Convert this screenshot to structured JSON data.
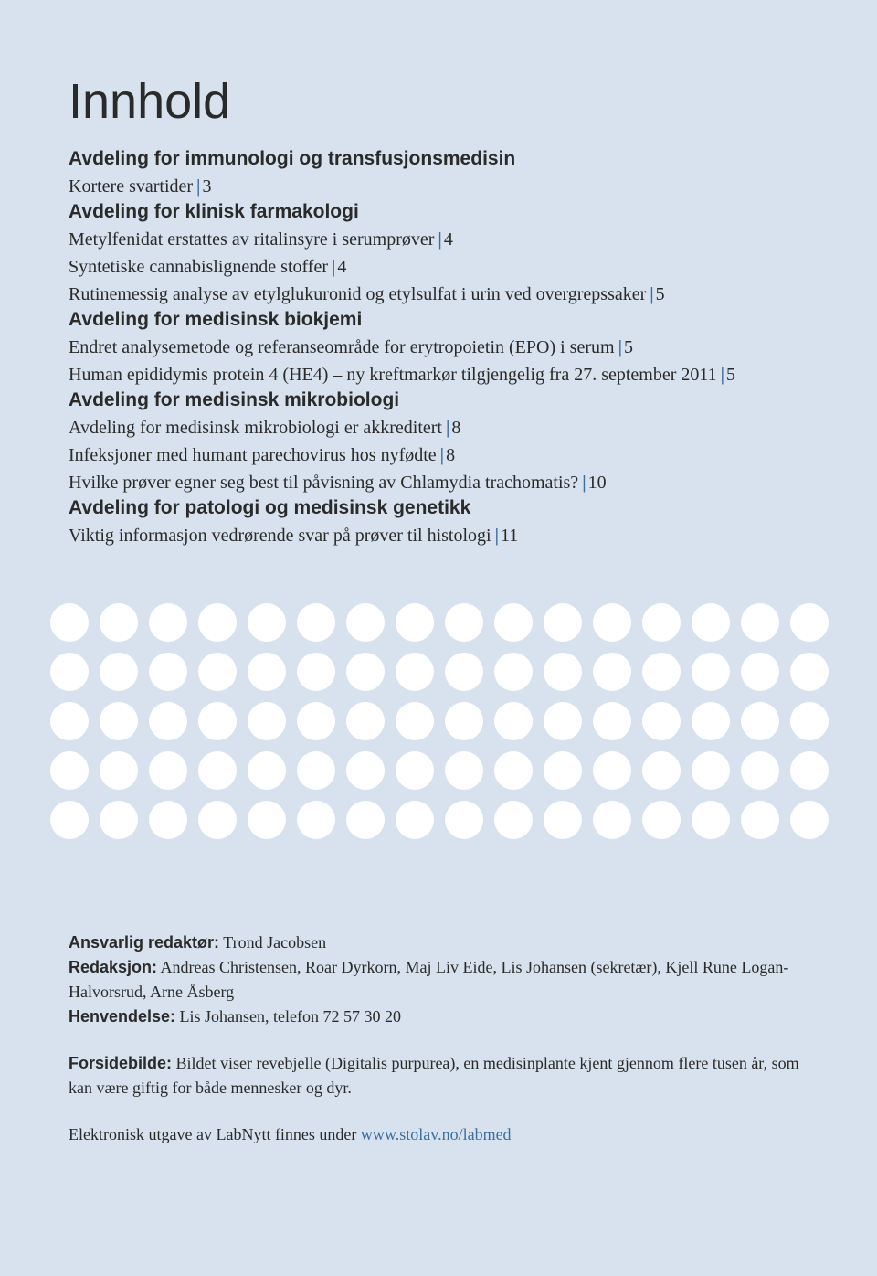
{
  "colors": {
    "background": "#d7e2ee",
    "text": "#2a2a2a",
    "accent": "#3d6ea0",
    "dot": "#ffffff"
  },
  "typography": {
    "title_fontsize": 54,
    "heading_fontsize": 21,
    "body_fontsize": 20,
    "footer_fontsize": 18,
    "heading_family": "Arial, Helvetica, sans-serif",
    "body_family": "Georgia, serif"
  },
  "title": "Innhold",
  "sections": [
    {
      "heading": "Avdeling for immunologi og transfusjonsmedisin",
      "entries": [
        {
          "text": "Kortere svartider",
          "page": "3"
        }
      ]
    },
    {
      "heading": "Avdeling for klinisk farmakologi",
      "entries": [
        {
          "text": "Metylfenidat erstattes av ritalinsyre i serumprøver",
          "page": "4"
        },
        {
          "text": "Syntetiske cannabislignende stoffer",
          "page": "4"
        },
        {
          "text": "Rutinemessig analyse av etylglukuronid og etylsulfat i urin ved overgrepssaker",
          "page": "5"
        }
      ]
    },
    {
      "heading": "Avdeling for medisinsk biokjemi",
      "entries": [
        {
          "text": "Endret analysemetode og referanseområde for erytropoietin (EPO) i serum",
          "page": "5"
        },
        {
          "text": "Human epididymis protein 4 (HE4) – ny kreftmarkør tilgjengelig fra 27. september 2011",
          "page": "5"
        }
      ]
    },
    {
      "heading": "Avdeling for medisinsk mikrobiologi",
      "entries": [
        {
          "text": "Avdeling for medisinsk mikrobiologi er akkreditert",
          "page": "8"
        },
        {
          "text": "Infeksjoner med humant parechovirus hos nyfødte",
          "page": "8"
        },
        {
          "text": "Hvilke prøver egner seg best til påvisning av Chlamydia trachomatis?",
          "page": "10"
        }
      ]
    },
    {
      "heading": "Avdeling for patologi og medisinsk genetikk",
      "entries": [
        {
          "text": "Viktig informasjon vedrørende svar på prøver til histologi",
          "page": "11"
        }
      ]
    }
  ],
  "dots_grid": {
    "rows": 5,
    "cols": 16,
    "dot_diameter": 42,
    "gap": 12,
    "color": "#ffffff"
  },
  "footer": {
    "editor_label": "Ansvarlig redaktør:",
    "editor_value": "Trond Jacobsen",
    "redaksjon_label": "Redaksjon:",
    "redaksjon_value": "Andreas Christensen, Roar Dyrkorn, Maj Liv Eide, Lis Johansen (sekretær), Kjell Rune Logan-Halvorsrud, Arne Åsberg",
    "henvendelse_label": "Henvendelse:",
    "henvendelse_value": "Lis Johansen, telefon 72 57 30 20",
    "forsidebilde_label": "Forsidebilde:",
    "forsidebilde_value": "Bildet viser revebjelle (Digitalis purpurea), en medisinplante kjent gjennom flere tusen år, som kan være giftig for både mennesker og dyr.",
    "elektronisk_text": "Elektronisk utgave av LabNytt finnes under ",
    "elektronisk_link": "www.stolav.no/labmed"
  }
}
